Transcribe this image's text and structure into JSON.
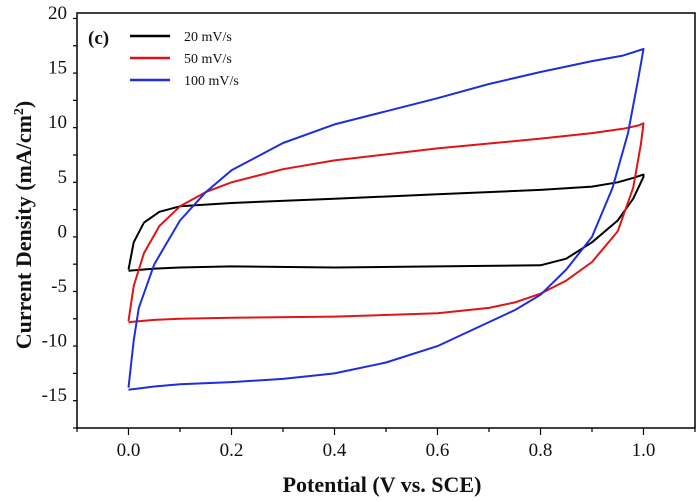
{
  "chart_data": {
    "type": "line",
    "panel_label": "(c)",
    "xlabel": "Potential (V vs. SCE)",
    "ylabel_main": "Current Density (mA/cm",
    "ylabel_sup": "2",
    "ylabel_close": ")",
    "xlim": [
      -0.1,
      1.1
    ],
    "ylim": [
      -18,
      20
    ],
    "x_ticks": [
      0.0,
      0.2,
      0.4,
      0.6,
      0.8,
      1.0
    ],
    "x_tick_labels": [
      "0.0",
      "0.2",
      "0.4",
      "0.6",
      "0.8",
      "1.0"
    ],
    "y_ticks": [
      -15,
      -10,
      -5,
      0,
      5,
      10,
      15,
      20
    ],
    "y_tick_labels": [
      "-15",
      "-10",
      "-5",
      "0",
      "5",
      "10",
      "15",
      "20"
    ],
    "grid": false,
    "legend_position": "top-left",
    "series": [
      {
        "name": "20 mV/s",
        "color": "#000000",
        "x": [
          0.0,
          0.01,
          0.03,
          0.06,
          0.1,
          0.2,
          0.4,
          0.6,
          0.8,
          0.9,
          0.95,
          0.98,
          1.0,
          1.0,
          0.98,
          0.95,
          0.9,
          0.85,
          0.8,
          0.6,
          0.4,
          0.2,
          0.1,
          0.05,
          0.0
        ],
        "y": [
          -3.5,
          -1.0,
          0.8,
          1.8,
          2.3,
          2.6,
          3.0,
          3.4,
          3.8,
          4.1,
          4.5,
          4.9,
          5.2,
          5.0,
          3.0,
          1.0,
          -1.0,
          -2.5,
          -3.1,
          -3.2,
          -3.3,
          -3.2,
          -3.3,
          -3.4,
          -3.6
        ]
      },
      {
        "name": "50 mV/s",
        "color": "#e01414",
        "x": [
          0.0,
          0.01,
          0.03,
          0.06,
          0.1,
          0.15,
          0.2,
          0.3,
          0.4,
          0.6,
          0.8,
          0.9,
          0.96,
          0.99,
          1.0,
          0.995,
          0.98,
          0.95,
          0.9,
          0.85,
          0.8,
          0.75,
          0.7,
          0.6,
          0.4,
          0.2,
          0.1,
          0.05,
          0.0
        ],
        "y": [
          -8.2,
          -5.0,
          -2.0,
          0.5,
          2.3,
          3.6,
          4.5,
          5.7,
          6.5,
          7.6,
          8.5,
          9.0,
          9.4,
          9.7,
          9.9,
          8.0,
          4.0,
          0.0,
          -2.8,
          -4.5,
          -5.7,
          -6.5,
          -7.0,
          -7.5,
          -7.8,
          -7.9,
          -8.0,
          -8.1,
          -8.3
        ]
      },
      {
        "name": "100 mV/s",
        "color": "#1f2ddf",
        "x": [
          0.0,
          0.01,
          0.02,
          0.05,
          0.1,
          0.15,
          0.2,
          0.3,
          0.4,
          0.5,
          0.6,
          0.7,
          0.8,
          0.9,
          0.96,
          1.0,
          0.99,
          0.97,
          0.94,
          0.9,
          0.85,
          0.8,
          0.75,
          0.7,
          0.65,
          0.6,
          0.5,
          0.4,
          0.38,
          0.3,
          0.2,
          0.1,
          0.05,
          0.0
        ],
        "y": [
          -14.3,
          -10.0,
          -7.0,
          -3.0,
          1.0,
          3.6,
          5.6,
          8.1,
          9.8,
          11.0,
          12.2,
          13.5,
          14.6,
          15.6,
          16.1,
          16.7,
          14.0,
          9.0,
          4.0,
          -0.5,
          -3.5,
          -5.8,
          -7.2,
          -8.3,
          -9.4,
          -10.5,
          -12.0,
          -13.0,
          -13.1,
          -13.5,
          -13.8,
          -14.0,
          -14.2,
          -14.5
        ]
      }
    ]
  }
}
